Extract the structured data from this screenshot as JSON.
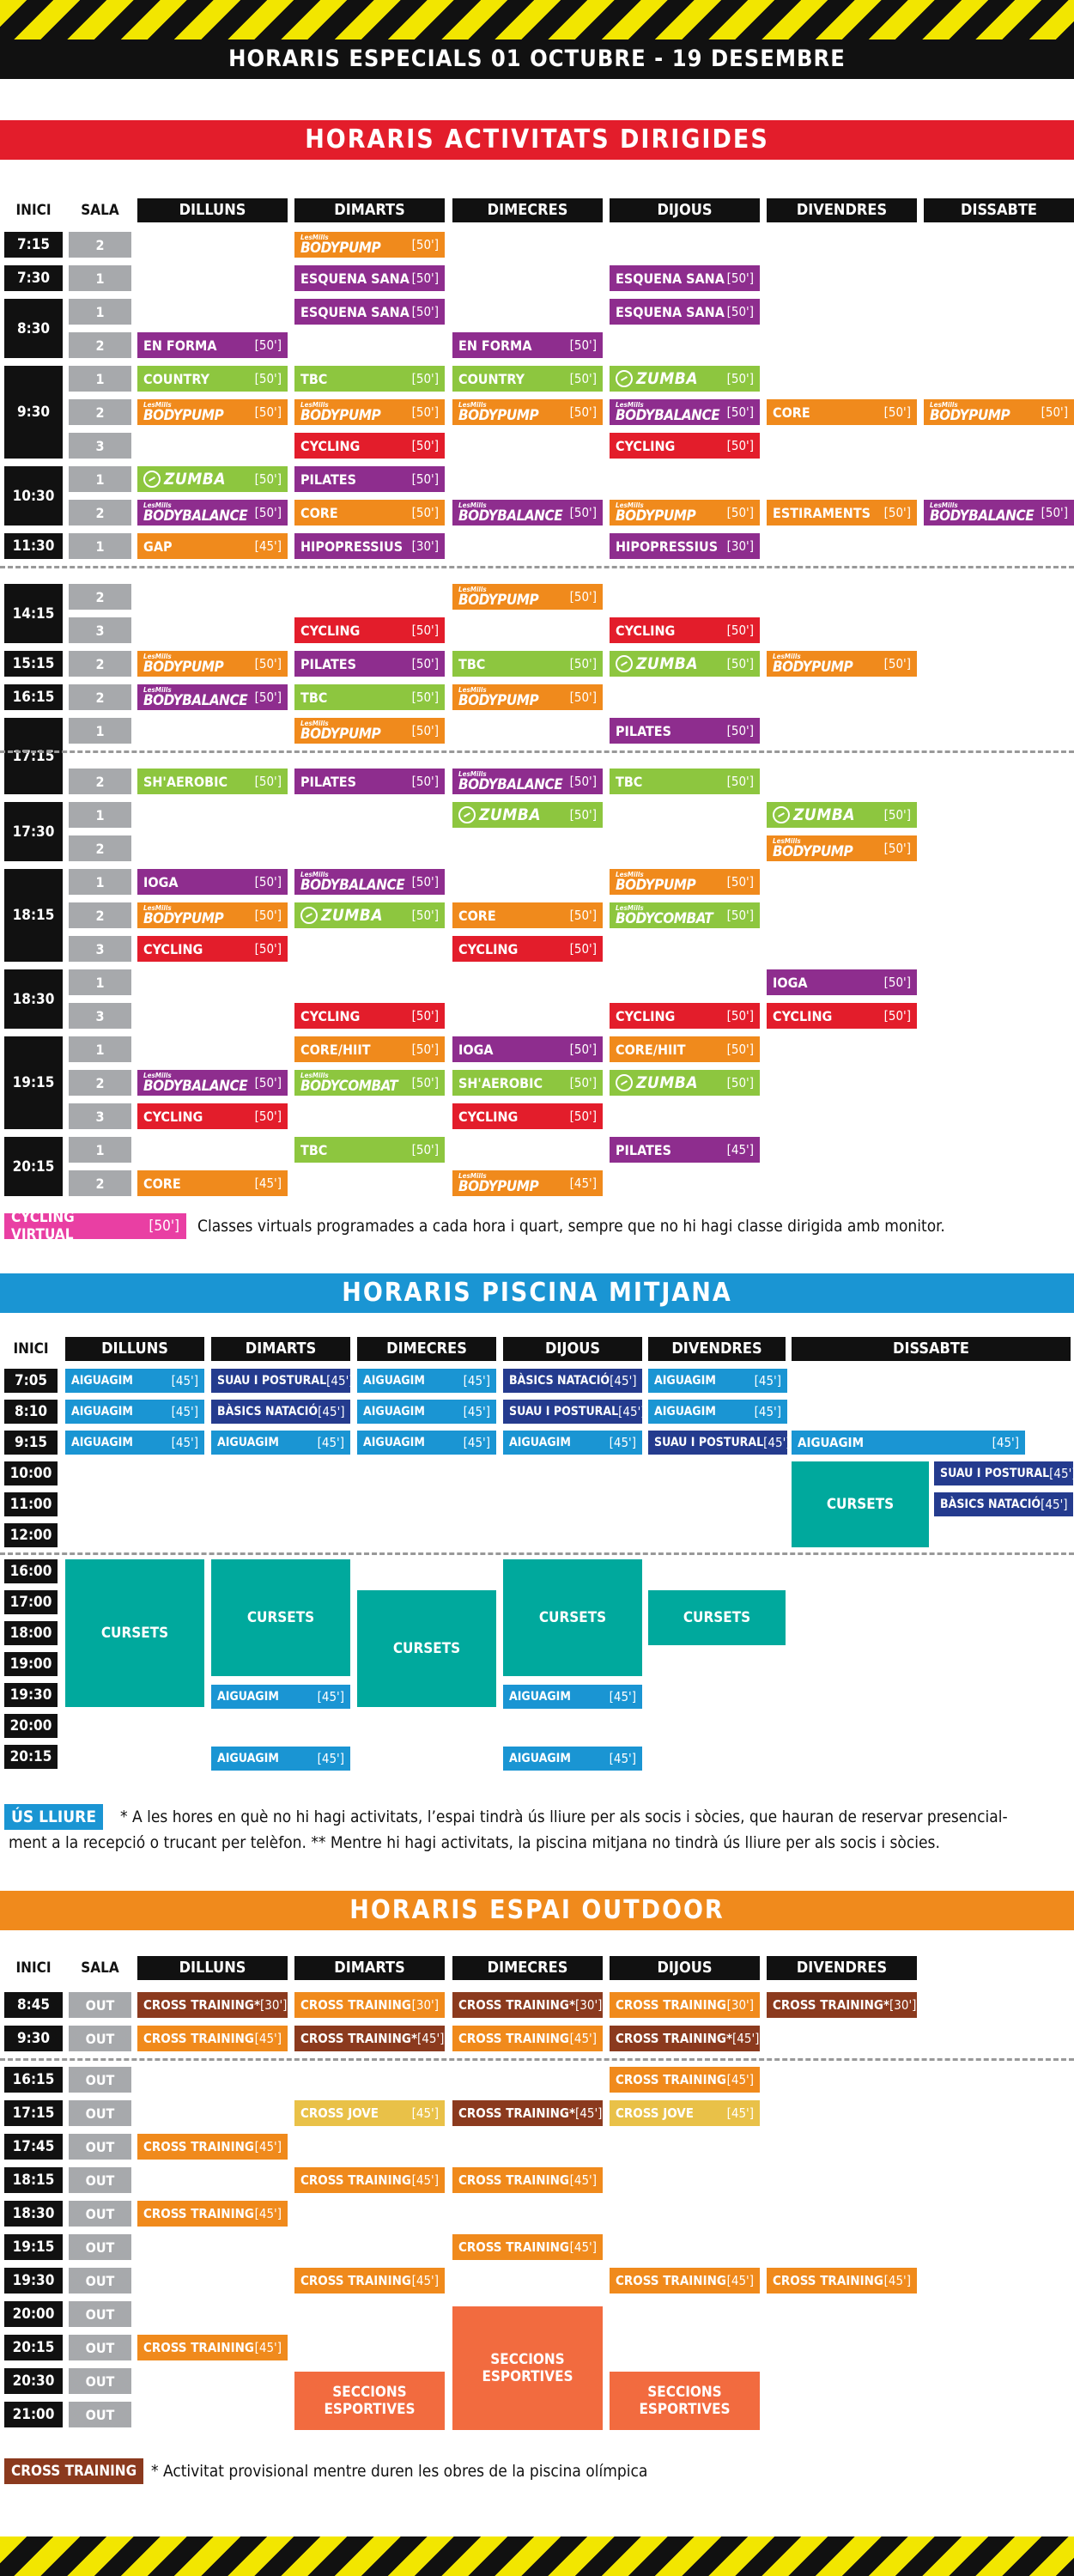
{
  "title": "HORARIS ESPECIALS 01 OCTUBRE - 19 DESEMBRE",
  "colors": {
    "red": "#e31d2b",
    "orange": "#f08a1c",
    "green": "#8dc63f",
    "purple": "#8e2d8e",
    "blue": "#1a95d3",
    "navy": "#243b8e",
    "teal": "#00a99d",
    "brown": "#8b3a1e",
    "amber": "#e9c148",
    "salmon": "#f26b3f",
    "pink": "#e93fa3"
  },
  "dirigides": {
    "banner": "HORARIS ACTIVITATS DIRIGIDES",
    "col_inici": "INICI",
    "col_sala": "SALA",
    "days": [
      "DILLUNS",
      "DIMARTS",
      "DIMECRES",
      "DIJOUS",
      "DIVENDRES",
      "DISSABTE"
    ],
    "times": [
      "7:15",
      "7:30",
      "8:30",
      "9:30",
      "10:30",
      "11:30",
      "14:15",
      "15:15",
      "16:15",
      "17:15",
      "17:30",
      "18:15",
      "18:30",
      "19:15",
      "20:15"
    ],
    "salas": [
      "2",
      "1",
      "1",
      "2",
      "1",
      "2",
      "3",
      "1",
      "2",
      "1",
      "2",
      "3",
      "2",
      "2",
      "1",
      "2",
      "1",
      "2",
      "1",
      "2",
      "3",
      "1",
      "3",
      "1",
      "2",
      "3",
      "1",
      "2"
    ],
    "lesmills": "LesMills",
    "zumba": "ZUMBA",
    "classes": [
      [
        "DIMARTS",
        "BODYPUMP",
        "[50']"
      ],
      [
        "DIMARTS",
        "ESQUENA SANA",
        "[50']"
      ],
      [
        "DIJOUS",
        "ESQUENA SANA",
        "[50']"
      ],
      [
        "DIMARTS",
        "ESQUENA SANA",
        "[50']"
      ],
      [
        "DIJOUS",
        "ESQUENA SANA",
        "[50']"
      ],
      [
        "DILLUNS",
        "EN FORMA",
        "[50']"
      ],
      [
        "DIMECRES",
        "EN FORMA",
        "[50']"
      ],
      [
        "DILLUNS",
        "COUNTRY",
        "[50']"
      ],
      [
        "DIMARTS",
        "TBC",
        "[50']"
      ],
      [
        "DIMECRES",
        "COUNTRY",
        "[50']"
      ],
      [
        "DIJOUS",
        "ZUMBA",
        "[50']"
      ],
      [
        "DILLUNS",
        "BODYPUMP",
        "[50']"
      ],
      [
        "DIMARTS",
        "BODYPUMP",
        "[50']"
      ],
      [
        "DIMECRES",
        "BODYPUMP",
        "[50']"
      ],
      [
        "DIJOUS",
        "BODYBALANCE",
        "[50']"
      ],
      [
        "DIVENDRES",
        "CORE",
        "[50']"
      ],
      [
        "DISSABTE",
        "BODYPUMP",
        "[50']"
      ],
      [
        "DIMARTS",
        "CYCLING",
        "[50']"
      ],
      [
        "DIJOUS",
        "CYCLING",
        "[50']"
      ],
      [
        "DILLUNS",
        "ZUMBA",
        "[50']"
      ],
      [
        "DIMARTS",
        "PILATES",
        "[50']"
      ],
      [
        "DILLUNS",
        "BODYBALANCE",
        "[50']"
      ],
      [
        "DIMARTS",
        "CORE",
        "[50']"
      ],
      [
        "DIMECRES",
        "BODYBALANCE",
        "[50']"
      ],
      [
        "DIJOUS",
        "BODYPUMP",
        "[50']"
      ],
      [
        "DIVENDRES",
        "ESTIRAMENTS",
        "[50']"
      ],
      [
        "DISSABTE",
        "BODYBALANCE",
        "[50']"
      ],
      [
        "DILLUNS",
        "GAP",
        "[45']"
      ],
      [
        "DIMARTS",
        "HIPOPRESSIUS",
        "[30']"
      ],
      [
        "DIJOUS",
        "HIPOPRESSIUS",
        "[30']"
      ],
      [
        "DIMECRES",
        "BODYPUMP",
        "[50']"
      ],
      [
        "DIMARTS",
        "CYCLING",
        "[50']"
      ],
      [
        "DIJOUS",
        "CYCLING",
        "[50']"
      ],
      [
        "DILLUNS",
        "BODYPUMP",
        "[50']"
      ],
      [
        "DIMARTS",
        "PILATES",
        "[50']"
      ],
      [
        "DIMECRES",
        "TBC",
        "[50']"
      ],
      [
        "DIJOUS",
        "ZUMBA",
        "[50']"
      ],
      [
        "DIVENDRES",
        "BODYPUMP",
        "[50']"
      ],
      [
        "DILLUNS",
        "BODYBALANCE",
        "[50']"
      ],
      [
        "DIMARTS",
        "TBC",
        "[50']"
      ],
      [
        "DIMECRES",
        "BODYPUMP",
        "[50']"
      ],
      [
        "DIMARTS",
        "BODYPUMP",
        "[50']"
      ],
      [
        "DIJOUS",
        "PILATES",
        "[50']"
      ],
      [
        "DILLUNS",
        "SH'AEROBIC",
        "[50']"
      ],
      [
        "DIMARTS",
        "PILATES",
        "[50']"
      ],
      [
        "DIMECRES",
        "BODYBALANCE",
        "[50']"
      ],
      [
        "DIJOUS",
        "TBC",
        "[50']"
      ],
      [
        "DIMECRES",
        "ZUMBA",
        "[50']"
      ],
      [
        "DIVENDRES",
        "ZUMBA",
        "[50']"
      ],
      [
        "DIVENDRES",
        "BODYPUMP",
        "[50']"
      ],
      [
        "DILLUNS",
        "IOGA",
        "[50']"
      ],
      [
        "DIMARTS",
        "BODYBALANCE",
        "[50']"
      ],
      [
        "DIJOUS",
        "BODYPUMP",
        "[50']"
      ],
      [
        "DILLUNS",
        "BODYPUMP",
        "[50']"
      ],
      [
        "DIMARTS",
        "ZUMBA",
        "[50']"
      ],
      [
        "DIMECRES",
        "CORE",
        "[50']"
      ],
      [
        "DIJOUS",
        "BODYCOMBAT",
        "[50']"
      ],
      [
        "DILLUNS",
        "CYCLING",
        "[50']"
      ],
      [
        "DIMECRES",
        "CYCLING",
        "[50']"
      ],
      [
        "DIVENDRES",
        "IOGA",
        "[50']"
      ],
      [
        "DIMARTS",
        "CYCLING",
        "[50']"
      ],
      [
        "DIJOUS",
        "CYCLING",
        "[50']"
      ],
      [
        "DIVENDRES",
        "CYCLING",
        "[50']"
      ],
      [
        "DIMARTS",
        "CORE/HIIT",
        "[50']"
      ],
      [
        "DIMECRES",
        "IOGA",
        "[50']"
      ],
      [
        "DIJOUS",
        "CORE/HIIT",
        "[50']"
      ],
      [
        "DILLUNS",
        "BODYBALANCE",
        "[50']"
      ],
      [
        "DIMARTS",
        "BODYCOMBAT",
        "[50']"
      ],
      [
        "DIMECRES",
        "SH'AEROBIC",
        "[50']"
      ],
      [
        "DIJOUS",
        "ZUMBA",
        "[50']"
      ],
      [
        "DILLUNS",
        "CYCLING",
        "[50']"
      ],
      [
        "DIMECRES",
        "CYCLING",
        "[50']"
      ],
      [
        "DIMARTS",
        "TBC",
        "[50']"
      ],
      [
        "DIJOUS",
        "PILATES",
        "[45']"
      ],
      [
        "DILLUNS",
        "CORE",
        "[45']"
      ],
      [
        "DIMECRES",
        "BODYPUMP",
        "[45']"
      ]
    ],
    "legend": {
      "label": "CYCLING VIRTUAL",
      "duration": "[50']",
      "text": "Classes virtuals programades a cada hora i quart, sempre que no hi hagi classe dirigida amb monitor."
    }
  },
  "piscina": {
    "banner": "HORARIS PISCINA MITJANA",
    "col_inici": "INICI",
    "days": [
      "DILLUNS",
      "DIMARTS",
      "DIMECRES",
      "DIJOUS",
      "DIVENDRES",
      "DISSABTE"
    ],
    "times": [
      "7:05",
      "8:10",
      "9:15",
      "10:00",
      "11:00",
      "12:00",
      "16:00",
      "17:00",
      "18:00",
      "19:00",
      "19:30",
      "20:00",
      "20:15"
    ],
    "classes": [
      [
        "DILLUNS",
        "AIGUAGIM",
        "[45']"
      ],
      [
        "DIMARTS",
        "SUAU I POSTURAL",
        "[45']"
      ],
      [
        "DIMECRES",
        "AIGUAGIM",
        "[45']"
      ],
      [
        "DIJOUS",
        "BÀSICS NATACIÓ",
        "[45']"
      ],
      [
        "DIVENDRES",
        "AIGUAGIM",
        "[45']"
      ],
      [
        "DILLUNS",
        "AIGUAGIM",
        "[45']"
      ],
      [
        "DIMARTS",
        "BÀSICS NATACIÓ",
        "[45']"
      ],
      [
        "DIMECRES",
        "AIGUAGIM",
        "[45']"
      ],
      [
        "DIJOUS",
        "SUAU I POSTURAL",
        "[45']"
      ],
      [
        "DIVENDRES",
        "AIGUAGIM",
        "[45']"
      ],
      [
        "DILLUNS",
        "AIGUAGIM",
        "[45']"
      ],
      [
        "DIMARTS",
        "AIGUAGIM",
        "[45']"
      ],
      [
        "DIMECRES",
        "AIGUAGIM",
        "[45']"
      ],
      [
        "DIJOUS",
        "AIGUAGIM",
        "[45']"
      ],
      [
        "DIVENDRES",
        "SUAU I POSTURAL",
        "[45']"
      ],
      [
        "DISSABTE",
        "AIGUAGIM",
        "[45']"
      ],
      [
        "DISSABTE",
        "SUAU I POSTURAL",
        "[45']"
      ],
      [
        "DISSABTE",
        "BÀSICS NATACIÓ",
        "[45']"
      ],
      [
        "DIMARTS",
        "AIGUAGIM",
        "[45']"
      ],
      [
        "DIJOUS",
        "AIGUAGIM",
        "[45']"
      ],
      [
        "DIMARTS",
        "AIGUAGIM",
        "[45']"
      ],
      [
        "DIJOUS",
        "AIGUAGIM",
        "[45']"
      ]
    ],
    "cursets": "CURSETS",
    "legend": {
      "label": "ÚS LLIURE",
      "text1": "* A les hores en què no hi hagi activitats, l’espai tindrà ús lliure per als socis i sòcies, que hauran de reservar presencial-",
      "text2": "ment a la recepció o trucant per telèfon. ** Mentre hi hagi activitats, la piscina mitjana no tindrà ús lliure per als socis i sòcies."
    }
  },
  "outdoor": {
    "banner": "HORARIS ESPAI OUTDOOR",
    "col_inici": "INICI",
    "col_sala": "SALA",
    "days": [
      "DILLUNS",
      "DIMARTS",
      "DIMECRES",
      "DIJOUS",
      "DIVENDRES"
    ],
    "times": [
      "8:45",
      "9:30",
      "16:15",
      "17:15",
      "17:45",
      "18:15",
      "18:30",
      "19:15",
      "19:30",
      "20:00",
      "20:15",
      "20:30",
      "21:00"
    ],
    "sala": "OUT",
    "classes": [
      [
        "DILLUNS",
        "CROSS TRAINING*",
        "[30']"
      ],
      [
        "DIMARTS",
        "CROSS TRAINING",
        "[30']"
      ],
      [
        "DIMECRES",
        "CROSS TRAINING*",
        "[30']"
      ],
      [
        "DIJOUS",
        "CROSS TRAINING",
        "[30']"
      ],
      [
        "DIVENDRES",
        "CROSS TRAINING*",
        "[30']"
      ],
      [
        "DILLUNS",
        "CROSS TRAINING",
        "[45']"
      ],
      [
        "DIMARTS",
        "CROSS TRAINING*",
        "[45']"
      ],
      [
        "DIMECRES",
        "CROSS TRAINING",
        "[45']"
      ],
      [
        "DIJOUS",
        "CROSS TRAINING*",
        "[45']"
      ],
      [
        "DIJOUS",
        "CROSS TRAINING",
        "[45']"
      ],
      [
        "DIMARTS",
        "CROSS JOVE",
        "[45']"
      ],
      [
        "DIMECRES",
        "CROSS TRAINING*",
        "[45']"
      ],
      [
        "DIJOUS",
        "CROSS JOVE",
        "[45']"
      ],
      [
        "DILLUNS",
        "CROSS TRAINING",
        "[45']"
      ],
      [
        "DIMARTS",
        "CROSS TRAINING",
        "[45']"
      ],
      [
        "DIMECRES",
        "CROSS TRAINING",
        "[45']"
      ],
      [
        "DILLUNS",
        "CROSS TRAINING",
        "[45']"
      ],
      [
        "DIMECRES",
        "CROSS TRAINING",
        "[45']"
      ],
      [
        "DIMARTS",
        "CROSS TRAINING",
        "[45']"
      ],
      [
        "DIJOUS",
        "CROSS TRAINING",
        "[45']"
      ],
      [
        "DIVENDRES",
        "CROSS TRAINING",
        "[45']"
      ],
      [
        "DILLUNS",
        "CROSS TRAINING",
        "[45']"
      ]
    ],
    "seccions": "SECCIONS ESPORTIVES",
    "legend": {
      "label": "CROSS TRAINING",
      "text": "* Activitat provisional mentre duren les obres de la piscina olímpica"
    }
  }
}
